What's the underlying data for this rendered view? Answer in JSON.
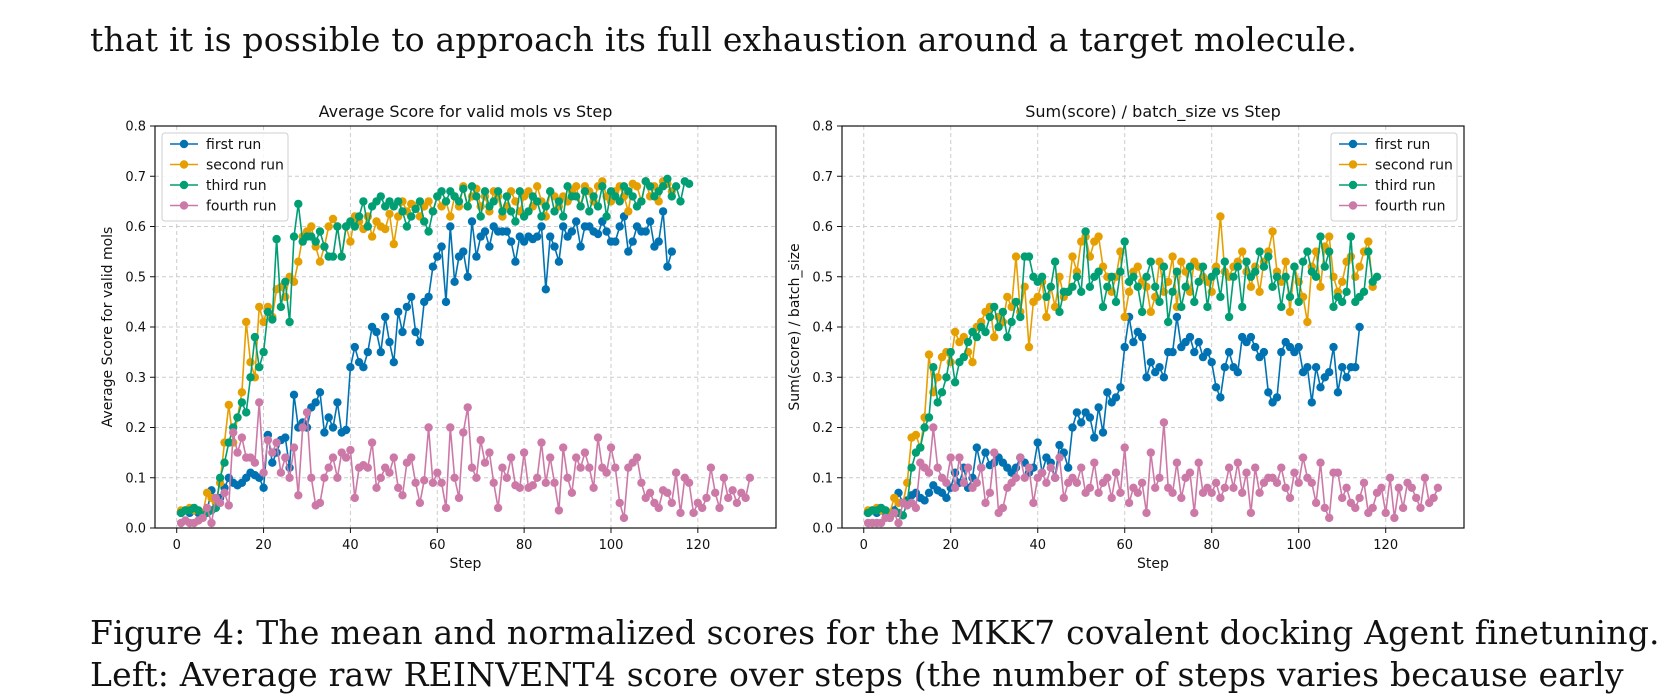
{
  "paper": {
    "intro_text": "that it is possible to approach its full exhaustion around a target molecule.",
    "caption": "Figure 4: The mean and normalized scores for the MKK7 covalent docking Agent finetuning.",
    "caption_continued": "Left: Average raw REINVENT4 score over steps (the number of steps varies because early"
  },
  "colors": {
    "first run": "#0072b2",
    "second run": "#e69f00",
    "third run": "#009e73",
    "fourth run": "#cc79a7"
  },
  "chart_data": [
    {
      "type": "line",
      "title": "Average Score for valid mols vs Step",
      "xlabel": "Step",
      "ylabel": "Average Score for valid mols",
      "xlim": [
        -5,
        138
      ],
      "ylim": [
        0.0,
        0.8
      ],
      "xticks": [
        0,
        20,
        40,
        60,
        80,
        100,
        120
      ],
      "yticks": [
        0.0,
        0.1,
        0.2,
        0.3,
        0.4,
        0.5,
        0.6,
        0.7,
        0.8
      ],
      "grid": true,
      "legend_position": "top-left",
      "series": [
        {
          "name": "first run",
          "x_start": 1,
          "values": [
            0.03,
            0.035,
            0.03,
            0.035,
            0.03,
            0.03,
            0.035,
            0.075,
            0.055,
            0.06,
            0.08,
            0.1,
            0.09,
            0.085,
            0.09,
            0.1,
            0.11,
            0.105,
            0.1,
            0.08,
            0.185,
            0.13,
            0.15,
            0.175,
            0.18,
            0.12,
            0.265,
            0.2,
            0.21,
            0.2,
            0.24,
            0.25,
            0.27,
            0.19,
            0.22,
            0.2,
            0.25,
            0.19,
            0.195,
            0.32,
            0.36,
            0.33,
            0.32,
            0.35,
            0.4,
            0.39,
            0.35,
            0.42,
            0.37,
            0.33,
            0.43,
            0.39,
            0.44,
            0.46,
            0.39,
            0.37,
            0.45,
            0.46,
            0.52,
            0.54,
            0.56,
            0.45,
            0.6,
            0.49,
            0.54,
            0.55,
            0.5,
            0.61,
            0.54,
            0.58,
            0.59,
            0.56,
            0.6,
            0.59,
            0.59,
            0.59,
            0.57,
            0.53,
            0.58,
            0.57,
            0.58,
            0.575,
            0.58,
            0.6,
            0.475,
            0.58,
            0.56,
            0.53,
            0.6,
            0.58,
            0.59,
            0.61,
            0.56,
            0.6,
            0.6,
            0.59,
            0.585,
            0.61,
            0.59,
            0.57,
            0.57,
            0.6,
            0.62,
            0.55,
            0.57,
            0.6,
            0.59,
            0.59,
            0.61,
            0.56,
            0.57,
            0.63,
            0.52,
            0.55
          ]
        },
        {
          "name": "second run",
          "x_start": 1,
          "values": [
            0.035,
            0.035,
            0.04,
            0.035,
            0.035,
            0.03,
            0.07,
            0.06,
            0.05,
            0.09,
            0.17,
            0.245,
            0.17,
            0.22,
            0.27,
            0.41,
            0.33,
            0.3,
            0.44,
            0.41,
            0.44,
            0.42,
            0.475,
            0.48,
            0.46,
            0.5,
            0.49,
            0.53,
            0.58,
            0.59,
            0.6,
            0.56,
            0.53,
            0.56,
            0.6,
            0.615,
            0.6,
            0.54,
            0.6,
            0.57,
            0.62,
            0.61,
            0.595,
            0.62,
            0.58,
            0.61,
            0.6,
            0.595,
            0.625,
            0.565,
            0.62,
            0.65,
            0.63,
            0.645,
            0.64,
            0.62,
            0.64,
            0.65,
            0.63,
            0.66,
            0.64,
            0.65,
            0.62,
            0.66,
            0.64,
            0.68,
            0.64,
            0.66,
            0.675,
            0.64,
            0.66,
            0.63,
            0.67,
            0.66,
            0.62,
            0.64,
            0.67,
            0.65,
            0.63,
            0.66,
            0.67,
            0.64,
            0.68,
            0.65,
            0.62,
            0.67,
            0.66,
            0.64,
            0.66,
            0.65,
            0.67,
            0.68,
            0.64,
            0.68,
            0.67,
            0.65,
            0.68,
            0.69,
            0.66,
            0.65,
            0.67,
            0.68,
            0.66,
            0.63,
            0.685,
            0.68,
            0.65,
            0.69,
            0.66,
            0.68,
            0.65,
            0.69,
            0.685,
            0.67
          ]
        },
        {
          "name": "third run",
          "x_start": 1,
          "values": [
            0.03,
            0.035,
            0.035,
            0.04,
            0.035,
            0.025,
            0.03,
            0.035,
            0.04,
            0.1,
            0.13,
            0.17,
            0.2,
            0.22,
            0.25,
            0.23,
            0.3,
            0.38,
            0.32,
            0.35,
            0.43,
            0.415,
            0.575,
            0.44,
            0.49,
            0.41,
            0.58,
            0.645,
            0.57,
            0.58,
            0.58,
            0.57,
            0.59,
            0.56,
            0.54,
            0.54,
            0.6,
            0.54,
            0.6,
            0.61,
            0.6,
            0.62,
            0.65,
            0.6,
            0.64,
            0.65,
            0.66,
            0.64,
            0.65,
            0.64,
            0.65,
            0.63,
            0.6,
            0.62,
            0.635,
            0.65,
            0.61,
            0.59,
            0.63,
            0.66,
            0.67,
            0.65,
            0.67,
            0.66,
            0.65,
            0.675,
            0.64,
            0.68,
            0.66,
            0.62,
            0.67,
            0.64,
            0.65,
            0.67,
            0.63,
            0.66,
            0.63,
            0.61,
            0.67,
            0.62,
            0.63,
            0.66,
            0.65,
            0.62,
            0.64,
            0.67,
            0.63,
            0.65,
            0.62,
            0.68,
            0.66,
            0.66,
            0.64,
            0.67,
            0.63,
            0.66,
            0.64,
            0.68,
            0.62,
            0.67,
            0.66,
            0.65,
            0.68,
            0.67,
            0.66,
            0.64,
            0.65,
            0.69,
            0.68,
            0.66,
            0.67,
            0.68,
            0.695,
            0.66,
            0.68,
            0.65,
            0.69,
            0.685
          ]
        },
        {
          "name": "fourth run",
          "x_start": 1,
          "values": [
            0.01,
            0.015,
            0.01,
            0.01,
            0.015,
            0.02,
            0.04,
            0.01,
            0.06,
            0.05,
            0.07,
            0.045,
            0.19,
            0.15,
            0.18,
            0.14,
            0.14,
            0.13,
            0.25,
            0.11,
            0.175,
            0.15,
            0.17,
            0.11,
            0.14,
            0.1,
            0.16,
            0.065,
            0.2,
            0.23,
            0.1,
            0.045,
            0.05,
            0.1,
            0.12,
            0.14,
            0.1,
            0.15,
            0.14,
            0.155,
            0.06,
            0.12,
            0.125,
            0.12,
            0.17,
            0.08,
            0.1,
            0.12,
            0.11,
            0.14,
            0.08,
            0.065,
            0.13,
            0.14,
            0.09,
            0.05,
            0.095,
            0.2,
            0.09,
            0.11,
            0.09,
            0.04,
            0.2,
            0.1,
            0.06,
            0.19,
            0.24,
            0.12,
            0.1,
            0.175,
            0.13,
            0.15,
            0.09,
            0.04,
            0.12,
            0.1,
            0.14,
            0.085,
            0.08,
            0.15,
            0.08,
            0.085,
            0.1,
            0.17,
            0.09,
            0.14,
            0.09,
            0.035,
            0.16,
            0.1,
            0.07,
            0.14,
            0.12,
            0.15,
            0.12,
            0.08,
            0.18,
            0.12,
            0.11,
            0.16,
            0.12,
            0.05,
            0.02,
            0.12,
            0.13,
            0.14,
            0.09,
            0.06,
            0.07,
            0.05,
            0.04,
            0.075,
            0.07,
            0.05,
            0.11,
            0.03,
            0.1,
            0.09,
            0.03,
            0.05,
            0.04,
            0.06,
            0.12,
            0.07,
            0.04,
            0.1,
            0.06,
            0.075,
            0.05,
            0.07,
            0.06,
            0.1
          ]
        }
      ]
    },
    {
      "type": "line",
      "title": "Sum(score) / batch_size vs Step",
      "xlabel": "Step",
      "ylabel": "Sum(score) / batch_size",
      "xlim": [
        -5,
        138
      ],
      "ylim": [
        0.0,
        0.8
      ],
      "xticks": [
        0,
        20,
        40,
        60,
        80,
        100,
        120
      ],
      "yticks": [
        0.0,
        0.1,
        0.2,
        0.3,
        0.4,
        0.5,
        0.6,
        0.7,
        0.8
      ],
      "grid": true,
      "legend_position": "top-right",
      "series": [
        {
          "name": "first run",
          "x_start": 1,
          "values": [
            0.03,
            0.035,
            0.03,
            0.035,
            0.03,
            0.03,
            0.035,
            0.07,
            0.05,
            0.055,
            0.065,
            0.07,
            0.06,
            0.055,
            0.07,
            0.085,
            0.075,
            0.07,
            0.06,
            0.08,
            0.11,
            0.09,
            0.12,
            0.08,
            0.1,
            0.16,
            0.12,
            0.15,
            0.125,
            0.13,
            0.14,
            0.13,
            0.12,
            0.11,
            0.12,
            0.14,
            0.13,
            0.11,
            0.12,
            0.17,
            0.11,
            0.14,
            0.13,
            0.1,
            0.165,
            0.15,
            0.12,
            0.2,
            0.23,
            0.21,
            0.23,
            0.22,
            0.18,
            0.24,
            0.19,
            0.27,
            0.25,
            0.26,
            0.28,
            0.36,
            0.42,
            0.37,
            0.39,
            0.38,
            0.3,
            0.33,
            0.31,
            0.32,
            0.3,
            0.35,
            0.35,
            0.42,
            0.36,
            0.37,
            0.38,
            0.35,
            0.37,
            0.34,
            0.35,
            0.33,
            0.28,
            0.26,
            0.32,
            0.35,
            0.32,
            0.31,
            0.38,
            0.37,
            0.38,
            0.36,
            0.34,
            0.35,
            0.27,
            0.25,
            0.26,
            0.35,
            0.37,
            0.36,
            0.35,
            0.36,
            0.31,
            0.32,
            0.25,
            0.32,
            0.28,
            0.3,
            0.31,
            0.36,
            0.27,
            0.32,
            0.3,
            0.32,
            0.32,
            0.4
          ]
        },
        {
          "name": "second run",
          "x_start": 1,
          "values": [
            0.035,
            0.035,
            0.04,
            0.035,
            0.035,
            0.03,
            0.06,
            0.05,
            0.05,
            0.09,
            0.18,
            0.185,
            0.16,
            0.22,
            0.345,
            0.27,
            0.3,
            0.34,
            0.35,
            0.33,
            0.39,
            0.37,
            0.38,
            0.35,
            0.33,
            0.4,
            0.41,
            0.43,
            0.44,
            0.38,
            0.42,
            0.41,
            0.46,
            0.44,
            0.54,
            0.43,
            0.48,
            0.36,
            0.45,
            0.46,
            0.49,
            0.42,
            0.48,
            0.44,
            0.5,
            0.46,
            0.47,
            0.54,
            0.51,
            0.57,
            0.58,
            0.54,
            0.57,
            0.58,
            0.52,
            0.5,
            0.47,
            0.5,
            0.55,
            0.42,
            0.47,
            0.51,
            0.52,
            0.49,
            0.48,
            0.43,
            0.46,
            0.53,
            0.47,
            0.49,
            0.54,
            0.44,
            0.53,
            0.51,
            0.47,
            0.53,
            0.52,
            0.5,
            0.49,
            0.47,
            0.52,
            0.62,
            0.51,
            0.5,
            0.52,
            0.53,
            0.55,
            0.51,
            0.48,
            0.52,
            0.47,
            0.53,
            0.55,
            0.59,
            0.51,
            0.49,
            0.53,
            0.43,
            0.52,
            0.49,
            0.46,
            0.41,
            0.52,
            0.55,
            0.48,
            0.56,
            0.58,
            0.5,
            0.47,
            0.49,
            0.53,
            0.54,
            0.5,
            0.52,
            0.55,
            0.57,
            0.48
          ]
        },
        {
          "name": "third run",
          "x_start": 1,
          "values": [
            0.03,
            0.035,
            0.035,
            0.04,
            0.035,
            0.02,
            0.03,
            0.03,
            0.025,
            0.05,
            0.12,
            0.15,
            0.16,
            0.2,
            0.22,
            0.32,
            0.25,
            0.27,
            0.3,
            0.35,
            0.29,
            0.33,
            0.34,
            0.37,
            0.39,
            0.38,
            0.4,
            0.39,
            0.42,
            0.44,
            0.4,
            0.43,
            0.38,
            0.41,
            0.45,
            0.42,
            0.54,
            0.54,
            0.5,
            0.49,
            0.5,
            0.46,
            0.48,
            0.53,
            0.43,
            0.47,
            0.47,
            0.48,
            0.5,
            0.47,
            0.59,
            0.48,
            0.5,
            0.51,
            0.44,
            0.48,
            0.5,
            0.45,
            0.51,
            0.57,
            0.49,
            0.5,
            0.48,
            0.43,
            0.5,
            0.53,
            0.48,
            0.45,
            0.52,
            0.41,
            0.47,
            0.51,
            0.44,
            0.48,
            0.52,
            0.45,
            0.49,
            0.52,
            0.44,
            0.5,
            0.51,
            0.46,
            0.53,
            0.42,
            0.5,
            0.52,
            0.44,
            0.53,
            0.5,
            0.51,
            0.55,
            0.52,
            0.54,
            0.48,
            0.5,
            0.44,
            0.5,
            0.46,
            0.52,
            0.45,
            0.53,
            0.55,
            0.51,
            0.5,
            0.58,
            0.52,
            0.55,
            0.44,
            0.46,
            0.45,
            0.47,
            0.58,
            0.45,
            0.46,
            0.47,
            0.55,
            0.49,
            0.5
          ]
        },
        {
          "name": "fourth run",
          "x_start": 1,
          "values": [
            0.01,
            0.01,
            0.01,
            0.01,
            0.02,
            0.02,
            0.03,
            0.01,
            0.05,
            0.045,
            0.05,
            0.04,
            0.13,
            0.12,
            0.11,
            0.2,
            0.12,
            0.1,
            0.09,
            0.14,
            0.08,
            0.14,
            0.09,
            0.12,
            0.08,
            0.09,
            0.12,
            0.05,
            0.07,
            0.15,
            0.03,
            0.04,
            0.08,
            0.09,
            0.1,
            0.14,
            0.1,
            0.12,
            0.05,
            0.1,
            0.11,
            0.09,
            0.12,
            0.1,
            0.14,
            0.06,
            0.09,
            0.1,
            0.09,
            0.12,
            0.07,
            0.08,
            0.13,
            0.07,
            0.09,
            0.1,
            0.06,
            0.11,
            0.07,
            0.16,
            0.05,
            0.08,
            0.07,
            0.09,
            0.03,
            0.15,
            0.08,
            0.1,
            0.21,
            0.08,
            0.07,
            0.13,
            0.06,
            0.1,
            0.11,
            0.03,
            0.13,
            0.07,
            0.08,
            0.07,
            0.09,
            0.06,
            0.08,
            0.12,
            0.08,
            0.13,
            0.07,
            0.11,
            0.03,
            0.12,
            0.07,
            0.09,
            0.1,
            0.1,
            0.09,
            0.12,
            0.08,
            0.06,
            0.11,
            0.09,
            0.14,
            0.1,
            0.09,
            0.05,
            0.13,
            0.04,
            0.02,
            0.11,
            0.11,
            0.06,
            0.08,
            0.05,
            0.04,
            0.06,
            0.09,
            0.03,
            0.04,
            0.07,
            0.08,
            0.03,
            0.1,
            0.02,
            0.08,
            0.04,
            0.09,
            0.08,
            0.06,
            0.04,
            0.1,
            0.05,
            0.06,
            0.08
          ]
        }
      ]
    }
  ]
}
